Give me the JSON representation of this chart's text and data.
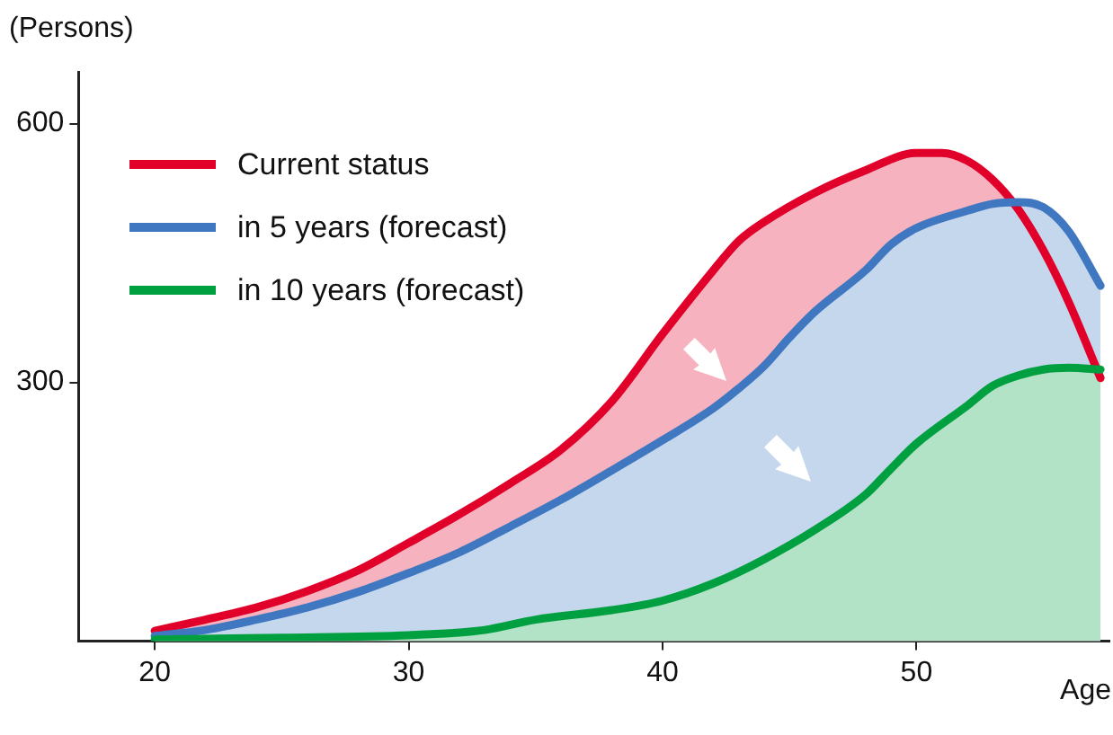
{
  "chart_data": {
    "type": "area",
    "ylabel": "(Persons)",
    "xlabel": "Age",
    "xlim": [
      17,
      57.6
    ],
    "ylim": [
      0,
      660
    ],
    "xticks": [
      20,
      30,
      40,
      50
    ],
    "yticks": [
      300,
      600
    ],
    "grid": false,
    "legend": "top left",
    "marker": "none",
    "line_style": "solid",
    "series": [
      {
        "name": "Current status",
        "color": "#e0002a",
        "x": [
          20,
          22,
          24,
          26,
          28,
          30,
          32,
          34,
          36,
          38,
          40,
          42,
          43,
          44,
          46,
          48,
          50,
          51,
          52,
          53,
          54,
          55,
          56,
          57.25
        ],
        "values": [
          12,
          25,
          39,
          58,
          82,
          114,
          147,
          183,
          222,
          278,
          356,
          430,
          464,
          486,
          520,
          546,
          566,
          566,
          557,
          535,
          501,
          453,
          393,
          305
        ]
      },
      {
        "name": "in 5 years (forecast)",
        "color": "#3f78c1",
        "x": [
          20,
          22,
          24,
          26,
          28,
          30,
          32,
          34,
          36,
          38,
          40,
          42,
          43,
          44,
          45,
          46,
          48,
          49,
          50,
          52,
          53,
          54,
          55,
          56,
          57.25
        ],
        "values": [
          6,
          13,
          25,
          39,
          57,
          79,
          103,
          133,
          164,
          198,
          233,
          270,
          293,
          319,
          352,
          382,
          430,
          460,
          479,
          499,
          507,
          509,
          503,
          475,
          412
        ]
      },
      {
        "name": "in 10 years (forecast)",
        "color": "#00a040",
        "x": [
          20,
          25,
          30,
          33,
          35,
          38,
          40,
          42,
          44,
          46,
          48,
          49,
          50,
          52,
          53,
          54,
          55,
          56,
          57.25
        ],
        "values": [
          2,
          4,
          7,
          13,
          25,
          36,
          47,
          67,
          95,
          129,
          170,
          200,
          229,
          273,
          296,
          308,
          315,
          317,
          315
        ]
      }
    ]
  }
}
